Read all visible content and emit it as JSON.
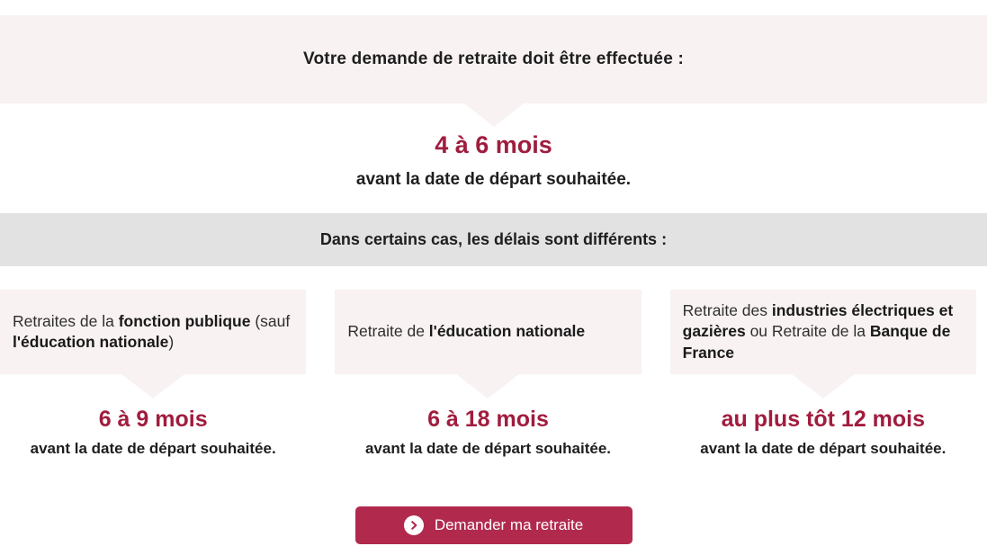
{
  "colors": {
    "accent_text": "#a01d3e",
    "button_background": "#b12a4e",
    "panel_pink": "#f9f2f2",
    "band_gray": "#e2e2e2",
    "text_dark": "#1e1e1e"
  },
  "intro": {
    "title": "Votre demande de retraite doit être effectuée :",
    "delay": "4 à 6 mois",
    "suffix": "avant la date de départ souhaitée."
  },
  "special_cases": {
    "title": "Dans certains cas, les délais sont différents :",
    "cases": [
      {
        "label_parts": [
          {
            "text": "Retraites de la ",
            "bold": false
          },
          {
            "text": "fonction publique",
            "bold": true
          },
          {
            "text": " (sauf ",
            "bold": false
          },
          {
            "text": "l'éducation nationale",
            "bold": true
          },
          {
            "text": ")",
            "bold": false
          }
        ],
        "delay": "6 à 9 mois",
        "suffix": "avant la date de départ souhaitée."
      },
      {
        "label_parts": [
          {
            "text": "Retraite de ",
            "bold": false
          },
          {
            "text": "l'éducation nationale",
            "bold": true
          }
        ],
        "delay": "6 à 18 mois",
        "suffix": "avant la date de départ souhaitée."
      },
      {
        "label_parts": [
          {
            "text": "Retraite des ",
            "bold": false
          },
          {
            "text": "industries électriques et gazières",
            "bold": true
          },
          {
            "text": " ou Retraite de la ",
            "bold": false
          },
          {
            "text": "Banque de France",
            "bold": true
          }
        ],
        "delay": "au plus tôt 12 mois",
        "suffix": "avant la date de départ souhaitée."
      }
    ]
  },
  "action": {
    "button_label": "Demander ma retraite",
    "button_icon": "chevron-right-circle-icon"
  }
}
